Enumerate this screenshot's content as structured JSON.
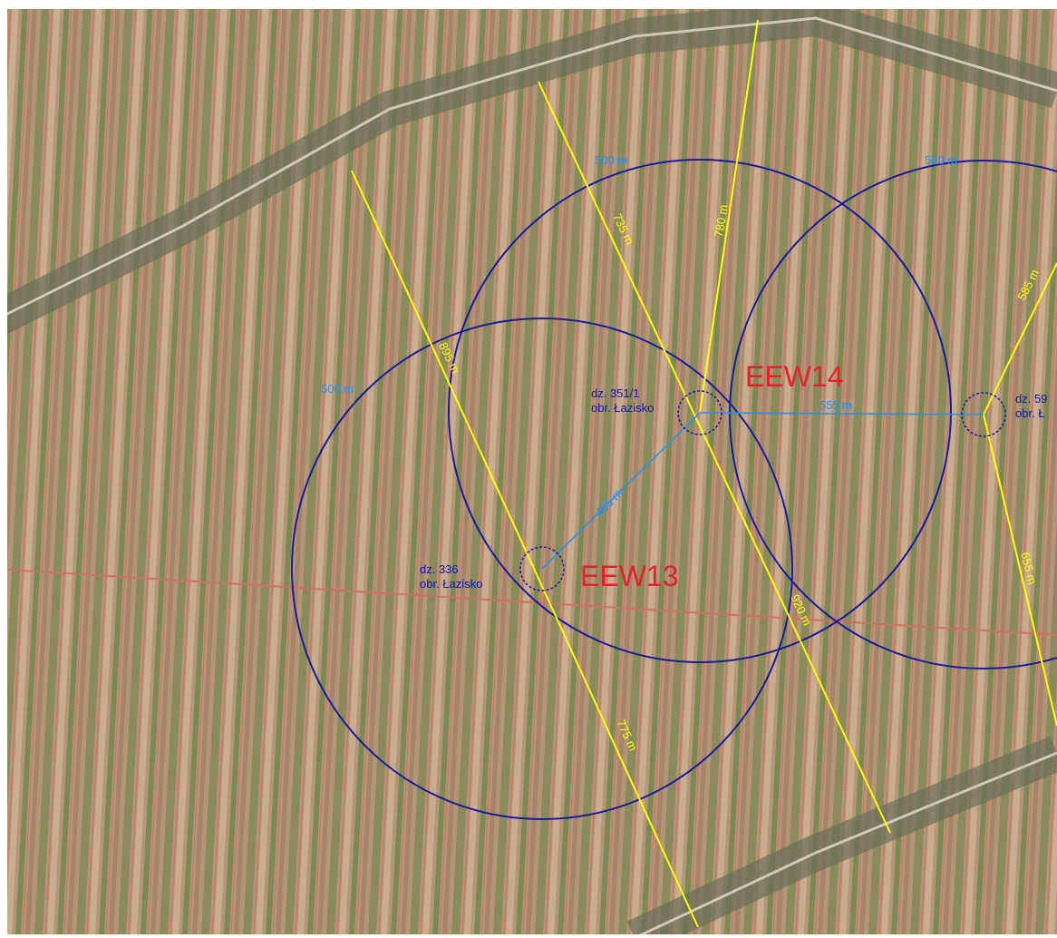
{
  "sites": [
    {
      "parcel": "dz. 351/1",
      "precinct": "obr. Łazisko",
      "turbine": "EEW14"
    },
    {
      "parcel": "dz. 336",
      "precinct": "obr. Łazisko",
      "turbine": "EEW13"
    },
    {
      "parcel": "dz. 59",
      "precinct": "obr. Ł"
    }
  ],
  "radius_labels": [
    "500 m",
    "500 m",
    "500 m"
  ],
  "distance_labels": [
    "735 m",
    "780 m",
    "895 m",
    "920 m",
    "775 m",
    "585 m",
    "655 m",
    "555 m",
    "455 m"
  ]
}
